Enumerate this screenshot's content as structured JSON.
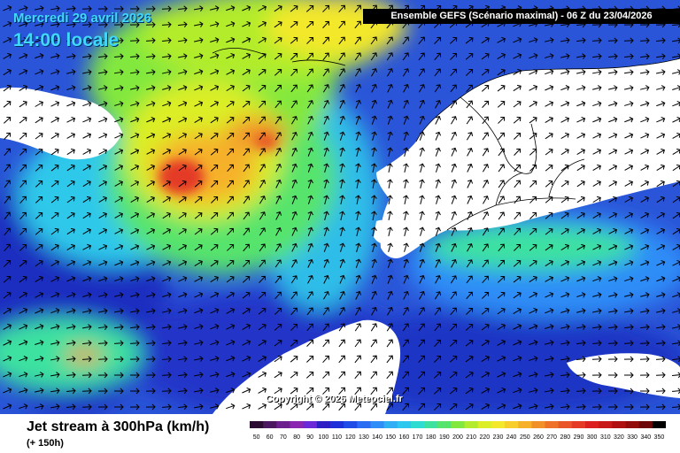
{
  "header": {
    "date_line": "Mercredi 29 avril 2026",
    "time_line": "14:00 locale",
    "model_run": "Ensemble GEFS  (Scénario maximal) - 06 Z du 23/04/2026"
  },
  "map": {
    "copyright": "Copyright © 2026 Meteociel.fr",
    "icon": "wind-arrow-icon"
  },
  "footer": {
    "title": "Jet stream à 300hPa (km/h)",
    "lead_time": "(+ 150h)"
  },
  "legend": {
    "labels": [
      "50",
      "60",
      "70",
      "80",
      "90",
      "100",
      "110",
      "120",
      "130",
      "140",
      "150",
      "160",
      "170",
      "180",
      "190",
      "200",
      "210",
      "220",
      "230",
      "240",
      "250",
      "260",
      "270",
      "280",
      "290",
      "300",
      "310",
      "320",
      "330",
      "340",
      "350"
    ],
    "colors": [
      "#2a0c33",
      "#4a1760",
      "#6e1f8e",
      "#8a26b0",
      "#6a2ad8",
      "#2d1fc4",
      "#1c2fd8",
      "#1f4ce8",
      "#2a6cf2",
      "#2f8df7",
      "#30aff5",
      "#2ec8ee",
      "#2fdcd2",
      "#3ee2a0",
      "#56e46c",
      "#82e83e",
      "#b2ec2c",
      "#dcee26",
      "#f4e82a",
      "#f8cf2a",
      "#f6b129",
      "#f29129",
      "#ee7329",
      "#e95528",
      "#e43a26",
      "#dc2020",
      "#c81818",
      "#b01010",
      "#920c0c",
      "#6e0808",
      "#000000"
    ]
  }
}
